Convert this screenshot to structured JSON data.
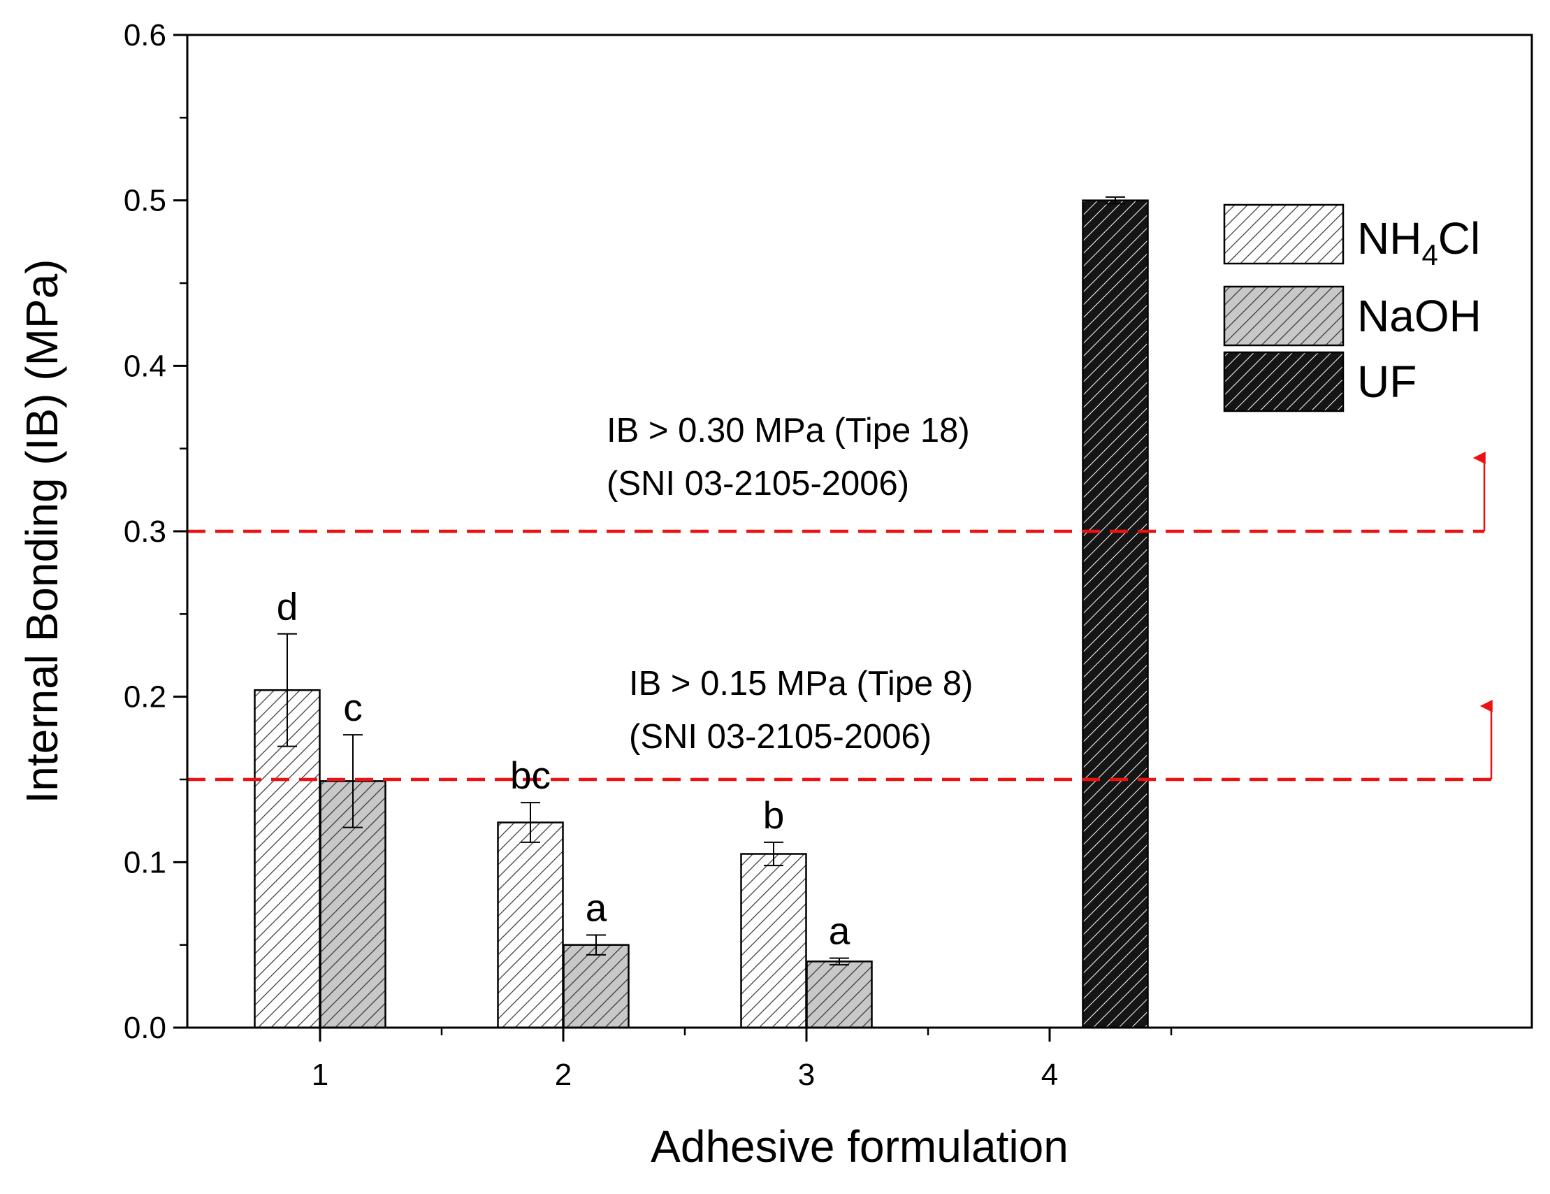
{
  "chart_data": {
    "type": "bar",
    "xlabel": "Adhesive formulation",
    "ylabel": "Internal Bonding (IB) (MPa)",
    "ylim": [
      0,
      0.6
    ],
    "yticks": [
      "0.0",
      "0.1",
      "0.2",
      "0.3",
      "0.4",
      "0.5",
      "0.6"
    ],
    "categories": [
      "1",
      "2",
      "3",
      "4"
    ],
    "grid": false,
    "legend_position": "top-right",
    "series": [
      {
        "key": "nh4cl",
        "name": "NH4Cl",
        "name_main": "NH",
        "name_sub": "4",
        "name_tail": "Cl",
        "fill": "#ffffff",
        "hatch": "#333333",
        "values": [
          0.204,
          0.124,
          0.105,
          null
        ],
        "errors": [
          0.034,
          0.012,
          0.007,
          null
        ],
        "labels": [
          "d",
          "bc",
          "b",
          ""
        ]
      },
      {
        "key": "naoh",
        "name": "NaOH",
        "fill": "#c8c8c8",
        "hatch": "#333333",
        "values": [
          0.149,
          0.05,
          0.04,
          null
        ],
        "errors": [
          0.028,
          0.006,
          0.002,
          null
        ],
        "labels": [
          "c",
          "a",
          "a",
          ""
        ]
      },
      {
        "key": "uf",
        "name": "UF",
        "fill": "#151515",
        "hatch": "#ffffff",
        "values": [
          null,
          null,
          null,
          0.5
        ],
        "errors": [
          null,
          null,
          null,
          0.002
        ],
        "labels": [
          "",
          "",
          "",
          ""
        ]
      }
    ],
    "reference_lines": [
      {
        "value": 0.3,
        "color": "#ee1111",
        "style": "dashed",
        "label_line1": "IB > 0.30 MPa (Tipe 18)",
        "label_line2": "(SNI 03-2105-2006)"
      },
      {
        "value": 0.15,
        "color": "#ee1111",
        "style": "dashed",
        "label_line1": "IB > 0.15 MPa (Tipe 8)",
        "label_line2": "(SNI 03-2105-2006)"
      }
    ]
  }
}
